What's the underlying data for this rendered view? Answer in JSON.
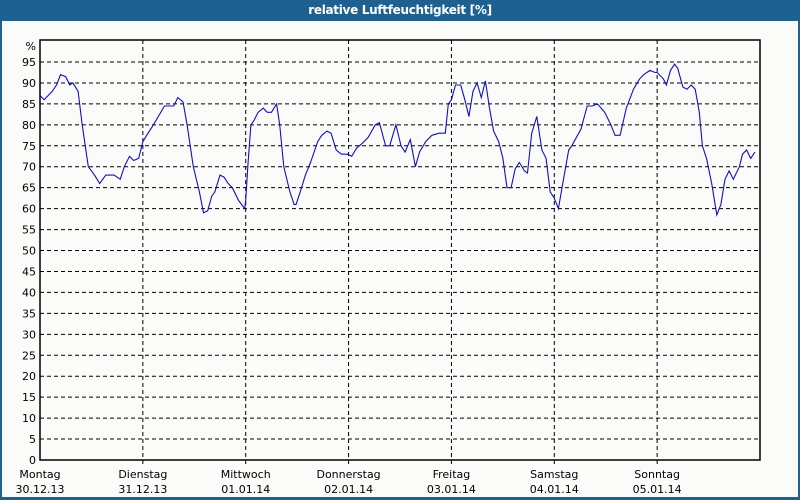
{
  "title": "relative Luftfeuchtigkeit [%]",
  "colors": {
    "frame": "#1e6190",
    "background": "#fbfcfa",
    "line": "#1010c0",
    "grid": "#000000"
  },
  "chart_data": {
    "type": "line",
    "title": "relative Luftfeuchtigkeit [%]",
    "xlabel": "",
    "ylabel": "%",
    "ylim": [
      0,
      95
    ],
    "yticks": [
      0,
      5,
      10,
      15,
      20,
      25,
      30,
      35,
      40,
      45,
      50,
      55,
      60,
      65,
      70,
      75,
      80,
      85,
      90,
      95
    ],
    "grid": true,
    "legend": null,
    "categories": [
      {
        "day": "Montag",
        "date": "30.12.13"
      },
      {
        "day": "Dienstag",
        "date": "31.12.13"
      },
      {
        "day": "Mittwoch",
        "date": "01.01.14"
      },
      {
        "day": "Donnerstag",
        "date": "02.01.14"
      },
      {
        "day": "Freitag",
        "date": "03.01.14"
      },
      {
        "day": "Samstag",
        "date": "04.01.14"
      },
      {
        "day": "Sonntag",
        "date": "05.01.14"
      }
    ],
    "series": [
      {
        "name": "relative Luftfeuchtigkeit",
        "unit": "%",
        "x_days": [
          0.0,
          0.04,
          0.12,
          0.16,
          0.2,
          0.25,
          0.29,
          0.32,
          0.37,
          0.41,
          0.47,
          0.53,
          0.58,
          0.64,
          0.72,
          0.78,
          0.82,
          0.87,
          0.91,
          0.96,
          1.0,
          1.05,
          1.09,
          1.15,
          1.21,
          1.3,
          1.34,
          1.39,
          1.43,
          1.49,
          1.55,
          1.59,
          1.63,
          1.67,
          1.7,
          1.75,
          1.79,
          1.83,
          1.87,
          1.93,
          1.99,
          2.0,
          2.02,
          2.05,
          2.08,
          2.12,
          2.17,
          2.21,
          2.25,
          2.3,
          2.33,
          2.37,
          2.43,
          2.47,
          2.49,
          2.53,
          2.58,
          2.63,
          2.7,
          2.74,
          2.79,
          2.83,
          2.88,
          2.93,
          2.99,
          3.03,
          3.08,
          3.13,
          3.19,
          3.26,
          3.3,
          3.36,
          3.4,
          3.46,
          3.51,
          3.55,
          3.6,
          3.65,
          3.69,
          3.75,
          3.81,
          3.88,
          3.94,
          3.97,
          4.0,
          4.04,
          4.09,
          4.13,
          4.17,
          4.21,
          4.25,
          4.29,
          4.33,
          4.37,
          4.41,
          4.46,
          4.5,
          4.54,
          4.58,
          4.62,
          4.66,
          4.71,
          4.74,
          4.78,
          4.83,
          4.88,
          4.92,
          4.96,
          5.0,
          5.04,
          5.09,
          5.14,
          5.17,
          5.26,
          5.32,
          5.37,
          5.42,
          5.49,
          5.55,
          5.59,
          5.64,
          5.7,
          5.77,
          5.83,
          5.87,
          5.93,
          5.98,
          6.0,
          6.06,
          6.09,
          6.13,
          6.17,
          6.2,
          6.25,
          6.29,
          6.33,
          6.37,
          6.41,
          6.44,
          6.48,
          6.53,
          6.58,
          6.62,
          6.66,
          6.7,
          6.74,
          6.8,
          6.83,
          6.87,
          6.91,
          6.95
        ],
        "values": [
          87,
          86,
          88,
          89.5,
          92,
          91.5,
          89.5,
          90,
          88,
          80,
          70,
          68,
          66,
          68,
          68,
          67,
          70,
          72.5,
          71.5,
          72,
          76,
          78,
          79.5,
          82,
          84.5,
          84.5,
          86.5,
          85.5,
          80,
          70,
          64,
          59,
          59.5,
          63,
          64,
          68,
          67.5,
          66,
          65,
          62,
          60,
          62,
          70,
          80,
          81,
          83,
          84,
          83,
          83,
          85,
          80,
          70,
          64,
          61,
          61,
          64,
          68,
          71,
          76,
          77.5,
          78.5,
          78,
          74,
          73,
          73,
          72.5,
          74.5,
          75.5,
          77,
          80,
          80.5,
          75,
          75,
          80,
          75,
          73.5,
          76.5,
          70,
          73.5,
          76,
          77.5,
          78,
          78,
          85,
          86,
          89.5,
          89.5,
          86,
          82,
          88,
          90,
          86.5,
          90.5,
          84,
          78.5,
          76,
          72,
          65,
          65,
          69.5,
          71,
          69,
          68.5,
          78,
          82,
          74,
          72,
          64,
          62.5,
          60,
          67,
          74,
          75,
          79,
          84.5,
          84.5,
          85,
          83,
          80,
          77.5,
          77.5,
          84,
          88.5,
          91,
          92,
          93,
          92.5,
          92.5,
          91,
          89.5,
          93,
          94.5,
          93.5,
          89,
          88.5,
          89.5,
          88.5,
          83,
          75,
          72,
          66,
          58.5,
          61,
          67,
          69,
          67,
          70,
          73,
          74,
          72,
          73.5
        ]
      }
    ]
  }
}
